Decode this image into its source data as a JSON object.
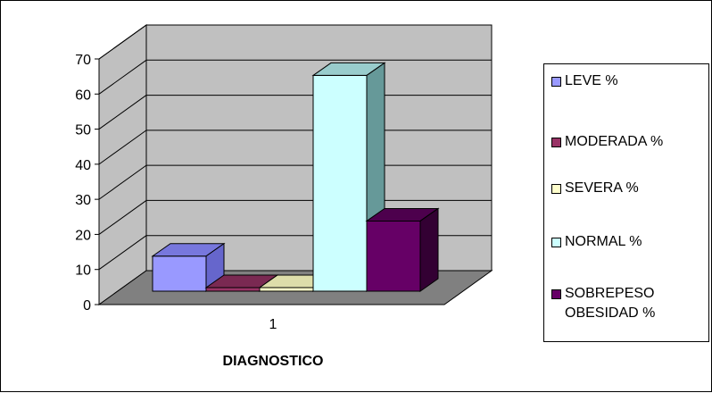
{
  "chart_data": {
    "type": "bar",
    "style": "3d-clustered-column",
    "categories": [
      "1"
    ],
    "series": [
      {
        "name": "LEVE %",
        "values": [
          10.5
        ],
        "color": "#9999FF",
        "side": "#6666CC",
        "top": "#7777DD"
      },
      {
        "name": "MODERADA %",
        "values": [
          1.5
        ],
        "color": "#993366",
        "side": "#661F44",
        "top": "#7A2952"
      },
      {
        "name": "SEVERA %",
        "values": [
          1
        ],
        "color": "#FFFFCC",
        "side": "#CCCC99",
        "top": "#DDDDAA"
      },
      {
        "name": "NORMAL %",
        "values": [
          62
        ],
        "color": "#CCFFFF",
        "side": "#669999",
        "top": "#99CCCC"
      },
      {
        "name": "SOBREPESO OBESIDAD %",
        "values": [
          20.5
        ],
        "color": "#660066",
        "side": "#330033",
        "top": "#4D004D"
      }
    ],
    "xlabel": "DIAGNOSTICO",
    "ylabel": "",
    "ylim": [
      0,
      70
    ],
    "yticks": [
      0,
      10,
      20,
      30,
      40,
      50,
      60,
      70
    ],
    "grid": true,
    "legend_position": "right",
    "wall_color": "#C0C0C0",
    "floor_color": "#808080"
  }
}
